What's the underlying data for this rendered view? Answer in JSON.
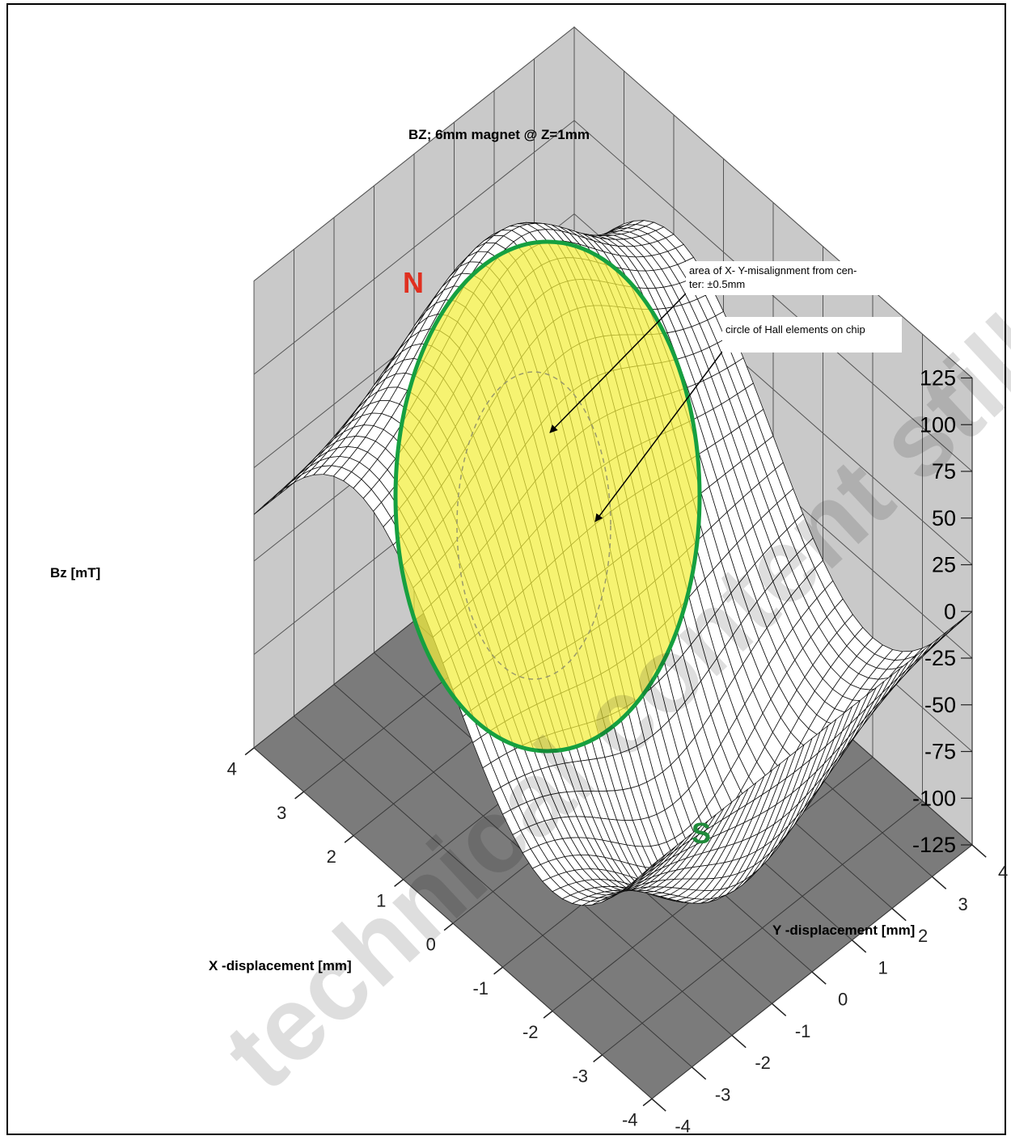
{
  "chart_data": {
    "type": "surface",
    "title": "BZ; 6mm magnet @ Z=1mm",
    "xlabel": "X -displacement [mm]",
    "ylabel": "Y -displacement [mm]",
    "zlabel": "Bz [mT]",
    "xlim": [
      -4,
      4
    ],
    "ylim": [
      -4,
      4
    ],
    "zlim": [
      -125,
      125
    ],
    "x_ticks": [
      "4",
      "3",
      "2",
      "1",
      "0",
      "-1",
      "-2",
      "-3",
      "-4"
    ],
    "y_ticks": [
      "4",
      "3",
      "2",
      "1",
      "0",
      "-1",
      "-2",
      "-3",
      "-4"
    ],
    "z_ticks": [
      "125",
      "100",
      "75",
      "50",
      "25",
      "0",
      "-25",
      "-50",
      "-75",
      "-100",
      "-125"
    ],
    "grid": true,
    "pole_labels": {
      "north": "N",
      "south": "S"
    },
    "peak_values": {
      "north_max": 125,
      "south_min": -125
    },
    "annotations": [
      {
        "text_line1": "area of X- Y-misalignment from cen-",
        "text_line2": "ter: ±0.5mm"
      },
      {
        "text_line1": "circle of Hall elements on chip"
      }
    ],
    "watermark": "technical content still valid",
    "colors": {
      "wall": "#c9c9c9",
      "floor": "#7b7b7b",
      "north": "#e03020",
      "south": "#1f8a3a",
      "circle_fill": "#f3ee3a",
      "circle_stroke": "#16a040"
    }
  }
}
